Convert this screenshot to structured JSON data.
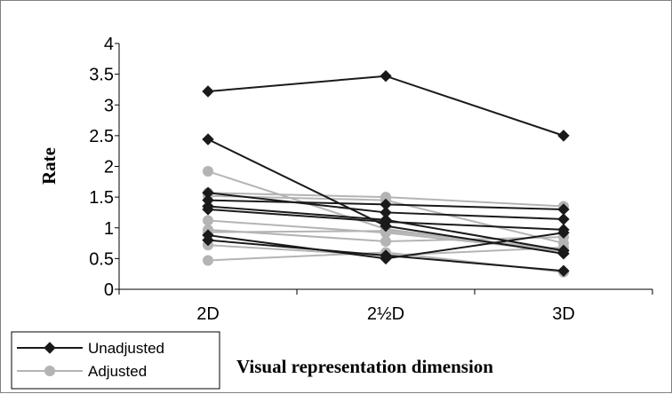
{
  "chart_data": {
    "type": "line",
    "categories": [
      "2D",
      "2½D",
      "3D"
    ],
    "xlabel": "Visual representation dimension",
    "ylabel": "Rate",
    "ylim": [
      0,
      4
    ],
    "yticks": [
      "0",
      "0.5",
      "1",
      "1.5",
      "2",
      "2.5",
      "3",
      "3.5",
      "4"
    ],
    "grid": false,
    "legend_position": "bottom-left",
    "groups": [
      {
        "name": "Unadjusted",
        "color": "#1a1a1a",
        "marker": "diamond",
        "series": [
          {
            "values": [
              3.22,
              3.47,
              2.5
            ]
          },
          {
            "values": [
              2.44,
              1.03,
              0.58
            ]
          },
          {
            "values": [
              1.57,
              1.25,
              1.14
            ]
          },
          {
            "values": [
              1.45,
              1.38,
              1.3
            ]
          },
          {
            "values": [
              1.35,
              1.13,
              0.63
            ]
          },
          {
            "values": [
              1.3,
              1.1,
              0.97
            ]
          },
          {
            "values": [
              0.88,
              0.5,
              0.92
            ]
          },
          {
            "values": [
              0.8,
              0.55,
              0.3
            ]
          }
        ]
      },
      {
        "name": "Adjusted",
        "color": "#b4b4b4",
        "marker": "circle",
        "series": [
          {
            "values": [
              1.92,
              0.98,
              0.62
            ]
          },
          {
            "values": [
              1.57,
              1.5,
              1.35
            ]
          },
          {
            "values": [
              1.52,
              1.45,
              0.75
            ]
          },
          {
            "values": [
              1.12,
              0.92,
              0.62
            ]
          },
          {
            "values": [
              0.97,
              0.78,
              0.85
            ]
          },
          {
            "values": [
              0.93,
              0.95,
              0.65
            ]
          },
          {
            "values": [
              0.72,
              0.55,
              0.68
            ]
          },
          {
            "values": [
              0.47,
              0.6,
              0.28
            ]
          }
        ]
      }
    ]
  }
}
